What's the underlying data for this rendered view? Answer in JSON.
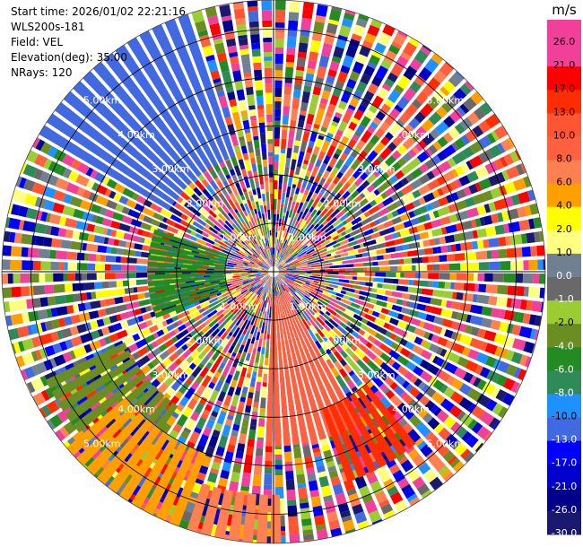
{
  "info": {
    "start_time": "Start time: 2026/01/02 22:21:16",
    "site": "WLS200s-181",
    "field": "Field: VEL",
    "elevation": "Elevation(deg): 35.00",
    "nrays": "NRays: 120"
  },
  "chart_data": {
    "type": "heatmap",
    "projection": "polar (PPI)",
    "field": "VEL",
    "units": "m/s",
    "ring_labels": [
      "1.00km",
      "2.00km",
      "3.00km",
      "4.00km",
      "5.00km"
    ],
    "max_range_km": 5.6,
    "colorbar": {
      "title": "m/s",
      "tick_labels": [
        "26.0",
        "21.0",
        "17.0",
        "13.0",
        "10.0",
        "8.0",
        "6.0",
        "4.0",
        "2.0",
        "1.0",
        "0.0",
        "-1.0",
        "-2.0",
        "-4.0",
        "-6.0",
        "-8.0",
        "-10.0",
        "-13.0",
        "-17.0",
        "-21.0",
        "-26.0",
        "-30.0"
      ],
      "colors": [
        "#f0409a",
        "#f0409a",
        "#ff0000",
        "#ff2d00",
        "#ff5533",
        "#ff6040",
        "#ff8050",
        "#ffa000",
        "#ffff00",
        "#ffff80",
        "#708090",
        "#696969",
        "#9acd32",
        "#6b8e23",
        "#228b22",
        "#2e8b57",
        "#1e90ff",
        "#4169e1",
        "#0000ff",
        "#0000cd",
        "#00008b",
        "#191970"
      ]
    },
    "sectors": [
      {
        "from_deg": 300,
        "to_deg": 340,
        "range_km": [
          2.5,
          5.6
        ],
        "value": -13.0
      },
      {
        "from_deg": 248,
        "to_deg": 290,
        "range_km": [
          1.0,
          2.6
        ],
        "value": -6.0
      },
      {
        "from_deg": 215,
        "to_deg": 245,
        "range_km": [
          3.4,
          5.2
        ],
        "value": -4.0
      },
      {
        "from_deg": 200,
        "to_deg": 230,
        "range_km": [
          4.0,
          5.6
        ],
        "value": 4.0
      },
      {
        "from_deg": 178,
        "to_deg": 198,
        "range_km": [
          4.6,
          5.6
        ],
        "value": 6.0
      },
      {
        "from_deg": 150,
        "to_deg": 182,
        "range_km": [
          0.5,
          3.6
        ],
        "value": 8.0
      },
      {
        "from_deg": 140,
        "to_deg": 160,
        "range_km": [
          3.0,
          4.6
        ],
        "value": 13.0
      }
    ]
  }
}
